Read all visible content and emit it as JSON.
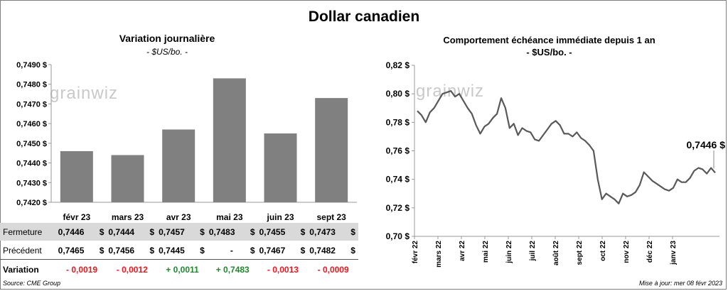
{
  "title": "Dollar canadien",
  "source": "Source: CME Group",
  "updated": "Mise à jour: mer 08 févr 2023",
  "watermark": "grainwiz",
  "colors": {
    "bar": "#808080",
    "line": "#595959",
    "negative": "#e8191e",
    "positive": "#1d8a2a"
  },
  "left_chart": {
    "title": "Variation  journalière",
    "unit": "- $US/bo. -"
  },
  "right_chart": {
    "title": "Comportement échéance immédiate depuis 1 an",
    "unit": "- $US/bo. -",
    "last_label": "0,7446 $"
  },
  "table": {
    "rows": [
      {
        "label": "Fermeture",
        "values": [
          "0,7446",
          "0,7444",
          "0,7457",
          "0,7483",
          "0,7455",
          "0,7473"
        ]
      },
      {
        "label": "Précédent",
        "values": [
          "0,7465",
          "0,7456",
          "0,7445",
          "-",
          "0,7467",
          "0,7482"
        ]
      }
    ],
    "currency": "$",
    "variation_label": "Variation",
    "variation": [
      "- 0,0019",
      "- 0,0012",
      "+ 0,0011",
      "+ 0,7483",
      "- 0,0013",
      "- 0,0009"
    ]
  },
  "chart_data": [
    {
      "type": "bar",
      "title": "Variation  journalière",
      "ylabel": "- $US/bo. -",
      "categories": [
        "févr 23",
        "mars 23",
        "avr 23",
        "mai 23",
        "juin 23",
        "sept 23"
      ],
      "values": [
        0.7446,
        0.7444,
        0.7457,
        0.7483,
        0.7455,
        0.7473
      ],
      "ylim": [
        0.742,
        0.749
      ],
      "yticks": [
        "0,7420 $",
        "0,7430 $",
        "0,7440 $",
        "0,7450 $",
        "0,7460 $",
        "0,7470 $",
        "0,7480 $",
        "0,7490 $"
      ],
      "grid": false
    },
    {
      "type": "line",
      "title": "Comportement échéance immédiate depuis 1 an",
      "ylabel": "- $US/bo. -",
      "ylim": [
        0.7,
        0.82
      ],
      "yticks": [
        "0,70 $",
        "0,72 $",
        "0,74 $",
        "0,76 $",
        "0,78 $",
        "0,80 $",
        "0,82 $"
      ],
      "xticks": [
        "févr 22",
        "mars 22",
        "avr 22",
        "mai 22",
        "juin 22",
        "juil 22",
        "août 22",
        "sept 22",
        "oct 22",
        "nov 22",
        "déc 22",
        "janv 23"
      ],
      "x_start": "févr 22",
      "x_end": "févr 23",
      "points_per_month": 4,
      "values": [
        0.788,
        0.785,
        0.78,
        0.787,
        0.79,
        0.795,
        0.8,
        0.801,
        0.802,
        0.798,
        0.8,
        0.795,
        0.79,
        0.786,
        0.778,
        0.772,
        0.777,
        0.779,
        0.783,
        0.786,
        0.797,
        0.79,
        0.776,
        0.779,
        0.771,
        0.776,
        0.774,
        0.773,
        0.768,
        0.767,
        0.771,
        0.775,
        0.779,
        0.781,
        0.778,
        0.772,
        0.772,
        0.77,
        0.773,
        0.769,
        0.767,
        0.764,
        0.76,
        0.74,
        0.726,
        0.73,
        0.728,
        0.726,
        0.723,
        0.73,
        0.728,
        0.729,
        0.731,
        0.736,
        0.745,
        0.742,
        0.739,
        0.737,
        0.735,
        0.733,
        0.732,
        0.734,
        0.74,
        0.738,
        0.738,
        0.741,
        0.746,
        0.748,
        0.747,
        0.744,
        0.748,
        0.7446
      ],
      "last_value": 0.7446
    }
  ]
}
